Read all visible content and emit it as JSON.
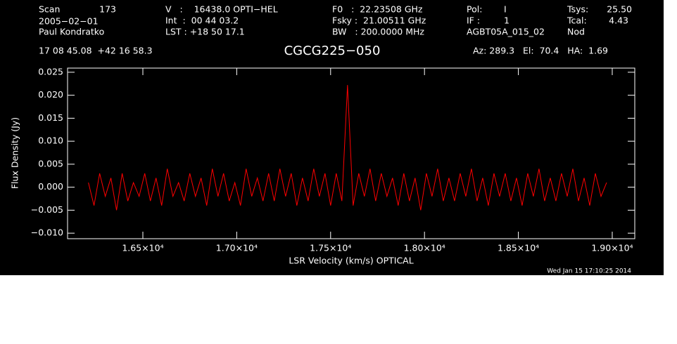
{
  "chart_data": {
    "type": "line",
    "title": "CGCG225−050",
    "header": [
      "Scan",
      "173",
      "2005−02−01",
      "Paul Kondratko",
      "V   :    16438.0 OPTI−HEL",
      "Int  :  00 44 03.2",
      "LST : +18 50 17.1",
      "F0   :  22.23508 GHz",
      "Fsky :  21.00511 GHz",
      "BW   : 200.0000 MHz",
      "Pol:",
      "I",
      "IF :",
      "1",
      "AGBT05A_015_02",
      "Tsys:",
      "25.50",
      "Tcal:",
      "4.43",
      "Nod",
      "17 08 45.08  +42 16 58.3",
      "Az: 289.3   El:  70.4   HA:  1.69"
    ],
    "timestamp": "Wed Jan 15 17:10:25 2014",
    "x_label": "LSR Velocity (km/s) OPTICAL",
    "y_label": "Flux Density (Jy)",
    "xlim": [
      16099,
      19120
    ],
    "ylim": [
      -0.0112,
      0.0259
    ],
    "xticks": [
      {
        "value": 16500,
        "label": "1.65×10⁴"
      },
      {
        "value": 17000,
        "label": "1.70×10⁴"
      },
      {
        "value": 17500,
        "label": "1.75×10⁴"
      },
      {
        "value": 18000,
        "label": "1.80×10⁴"
      },
      {
        "value": 18500,
        "label": "1.85×10⁴"
      },
      {
        "value": 19000,
        "label": "1.90×10⁴"
      }
    ],
    "yticks": [
      {
        "value": -0.01,
        "label": "−0.010"
      },
      {
        "value": -0.005,
        "label": "−0.005"
      },
      {
        "value": 0,
        "label": "0.000"
      },
      {
        "value": 0.005,
        "label": "0.005"
      },
      {
        "value": 0.01,
        "label": "0.010"
      },
      {
        "value": 0.015,
        "label": "0.015"
      },
      {
        "value": 0.02,
        "label": "0.020"
      },
      {
        "value": 0.025,
        "label": "0.025"
      }
    ],
    "x": [
      16210,
      16240,
      16270,
      16300,
      16330,
      16360,
      16390,
      16420,
      16450,
      16480,
      16510,
      16540,
      16570,
      16600,
      16630,
      16660,
      16690,
      16720,
      16750,
      16780,
      16810,
      16840,
      16870,
      16900,
      16930,
      16960,
      16990,
      17020,
      17050,
      17080,
      17110,
      17140,
      17170,
      17200,
      17230,
      17260,
      17290,
      17320,
      17350,
      17380,
      17410,
      17440,
      17470,
      17500,
      17530,
      17560,
      17590,
      17620,
      17650,
      17680,
      17710,
      17740,
      17770,
      17800,
      17830,
      17860,
      17890,
      17920,
      17950,
      17980,
      18010,
      18040,
      18070,
      18100,
      18130,
      18160,
      18190,
      18220,
      18250,
      18280,
      18310,
      18340,
      18370,
      18400,
      18430,
      18460,
      18490,
      18520,
      18550,
      18580,
      18610,
      18640,
      18670,
      18700,
      18730,
      18760,
      18790,
      18820,
      18850,
      18880,
      18910,
      18940,
      18970
    ],
    "series": [
      {
        "color": "#ff0000",
        "values": [
          0.001,
          -0.004,
          0.003,
          -0.002,
          0.002,
          -0.005,
          0.003,
          -0.003,
          0.001,
          -0.002,
          0.003,
          -0.003,
          0.002,
          -0.004,
          0.004,
          -0.002,
          0.001,
          -0.003,
          0.003,
          -0.002,
          0.002,
          -0.004,
          0.004,
          -0.002,
          0.003,
          -0.003,
          0.001,
          -0.004,
          0.004,
          -0.002,
          0.002,
          -0.003,
          0.003,
          -0.003,
          0.004,
          -0.002,
          0.003,
          -0.004,
          0.002,
          -0.003,
          0.004,
          -0.002,
          0.003,
          -0.004,
          0.003,
          -0.003,
          0.0222,
          -0.004,
          0.003,
          -0.002,
          0.004,
          -0.003,
          0.003,
          -0.002,
          0.002,
          -0.004,
          0.003,
          -0.003,
          0.002,
          -0.005,
          0.003,
          -0.002,
          0.004,
          -0.003,
          0.002,
          -0.003,
          0.003,
          -0.002,
          0.004,
          -0.003,
          0.002,
          -0.004,
          0.003,
          -0.002,
          0.003,
          -0.003,
          0.002,
          -0.004,
          0.003,
          -0.002,
          0.004,
          -0.003,
          0.002,
          -0.003,
          0.003,
          -0.002,
          0.004,
          -0.003,
          0.002,
          -0.004,
          0.003,
          -0.002,
          0.001
        ]
      }
    ]
  }
}
